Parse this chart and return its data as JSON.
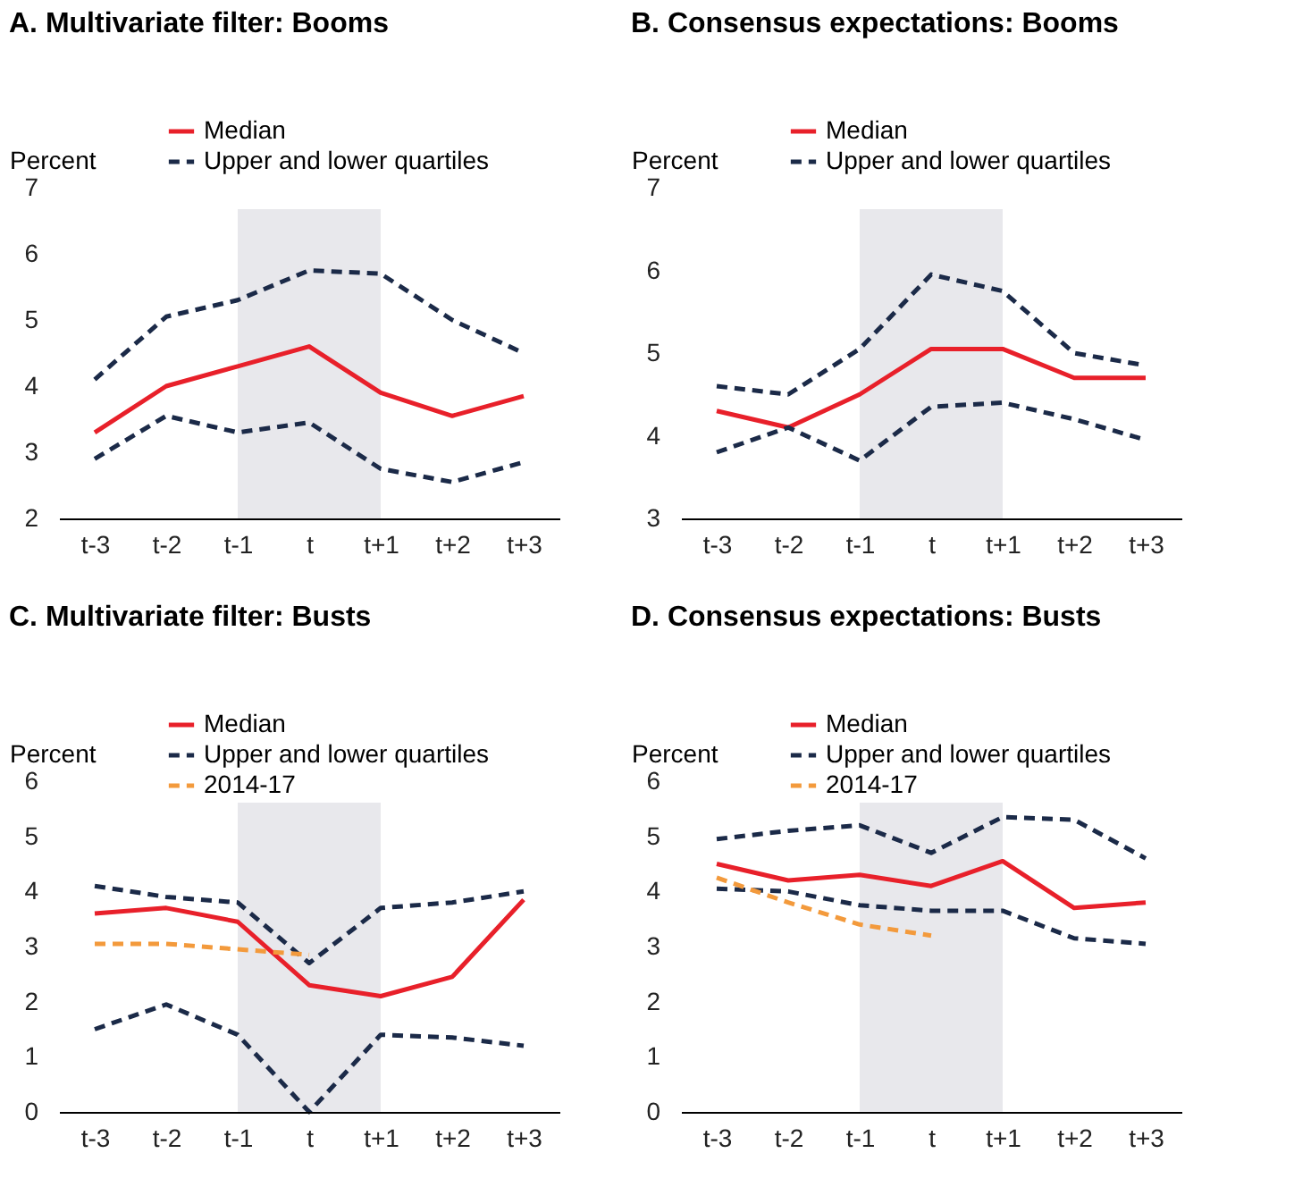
{
  "chart_data": [
    {
      "type": "line",
      "title": "A. Multivariate filter: Booms",
      "ylabel": "Percent",
      "categories": [
        "t-3",
        "t-2",
        "t-1",
        "t",
        "t+1",
        "t+2",
        "t+3"
      ],
      "ylim": [
        2,
        7
      ],
      "yticks": [
        2,
        3,
        4,
        5,
        6,
        7
      ],
      "grid": false,
      "legend": "top",
      "bands": [
        {
          "axis": "x",
          "from": "t-1",
          "to": "t+1",
          "color": "#e8e8ec"
        }
      ],
      "series": [
        {
          "name": "Median",
          "color": "#e8202a",
          "line_style": "solid",
          "values": [
            3.3,
            4.0,
            4.3,
            4.6,
            3.9,
            3.55,
            3.85
          ]
        },
        {
          "name": "Upper and lower quartiles",
          "color": "#1b2a48",
          "line_style": "dashed",
          "values": [
            4.1,
            5.05,
            5.3,
            5.75,
            5.7,
            5.0,
            4.5
          ]
        },
        {
          "color": "#1b2a48",
          "line_style": "dashed",
          "values": [
            2.9,
            3.55,
            3.3,
            3.45,
            2.75,
            2.55,
            2.85
          ]
        }
      ]
    },
    {
      "type": "line",
      "title": "B. Consensus expectations: Booms",
      "ylabel": "Percent",
      "categories": [
        "t-3",
        "t-2",
        "t-1",
        "t",
        "t+1",
        "t+2",
        "t+3"
      ],
      "ylim": [
        3,
        7
      ],
      "yticks": [
        3,
        4,
        5,
        6,
        7
      ],
      "grid": false,
      "legend": "top",
      "bands": [
        {
          "axis": "x",
          "from": "t-1",
          "to": "t+1",
          "color": "#e8e8ec"
        }
      ],
      "series": [
        {
          "name": "Median",
          "color": "#e8202a",
          "line_style": "solid",
          "values": [
            4.3,
            4.1,
            4.5,
            5.05,
            5.05,
            4.7,
            4.7
          ]
        },
        {
          "name": "Upper and lower quartiles",
          "color": "#1b2a48",
          "line_style": "dashed",
          "values": [
            4.6,
            4.5,
            5.05,
            5.95,
            5.75,
            5.0,
            4.85
          ]
        },
        {
          "color": "#1b2a48",
          "line_style": "dashed",
          "values": [
            3.8,
            4.1,
            3.7,
            4.35,
            4.4,
            4.2,
            3.95
          ]
        }
      ]
    },
    {
      "type": "line",
      "title": "C. Multivariate filter: Busts",
      "ylabel": "Percent",
      "categories": [
        "t-3",
        "t-2",
        "t-1",
        "t",
        "t+1",
        "t+2",
        "t+3"
      ],
      "ylim": [
        0,
        6
      ],
      "yticks": [
        0,
        1,
        2,
        3,
        4,
        5,
        6
      ],
      "grid": false,
      "legend": "top",
      "bands": [
        {
          "axis": "x",
          "from": "t-1",
          "to": "t+1",
          "color": "#e8e8ec"
        }
      ],
      "series": [
        {
          "name": "Median",
          "color": "#e8202a",
          "line_style": "solid",
          "values": [
            3.6,
            3.7,
            3.45,
            2.3,
            2.1,
            2.45,
            3.85
          ]
        },
        {
          "name": "Upper and lower quartiles",
          "color": "#1b2a48",
          "line_style": "dashed",
          "values": [
            4.1,
            3.9,
            3.8,
            2.7,
            3.7,
            3.8,
            4.0
          ]
        },
        {
          "color": "#1b2a48",
          "line_style": "dashed",
          "values": [
            1.5,
            1.95,
            1.4,
            0.0,
            1.4,
            1.35,
            1.2
          ]
        },
        {
          "name": "2014-17",
          "color": "#f39a3c",
          "line_style": "dashed",
          "values": [
            3.05,
            3.05,
            2.95,
            2.85,
            null,
            null,
            null
          ]
        }
      ]
    },
    {
      "type": "line",
      "title": "D. Consensus expectations: Busts",
      "ylabel": "Percent",
      "categories": [
        "t-3",
        "t-2",
        "t-1",
        "t",
        "t+1",
        "t+2",
        "t+3"
      ],
      "ylim": [
        0,
        6
      ],
      "yticks": [
        0,
        1,
        2,
        3,
        4,
        5,
        6
      ],
      "grid": false,
      "legend": "top",
      "bands": [
        {
          "axis": "x",
          "from": "t-1",
          "to": "t+1",
          "color": "#e8e8ec"
        }
      ],
      "series": [
        {
          "name": "Median",
          "color": "#e8202a",
          "line_style": "solid",
          "values": [
            4.5,
            4.2,
            4.3,
            4.1,
            4.55,
            3.7,
            3.8
          ]
        },
        {
          "name": "Upper and lower quartiles",
          "color": "#1b2a48",
          "line_style": "dashed",
          "values": [
            4.95,
            5.1,
            5.2,
            4.7,
            5.35,
            5.3,
            4.6
          ]
        },
        {
          "color": "#1b2a48",
          "line_style": "dashed",
          "values": [
            4.05,
            4.0,
            3.75,
            3.65,
            3.65,
            3.15,
            3.05
          ]
        },
        {
          "name": "2014-17",
          "color": "#f39a3c",
          "line_style": "dashed",
          "values": [
            4.25,
            3.8,
            3.4,
            3.2,
            null,
            null,
            null
          ]
        }
      ]
    }
  ]
}
